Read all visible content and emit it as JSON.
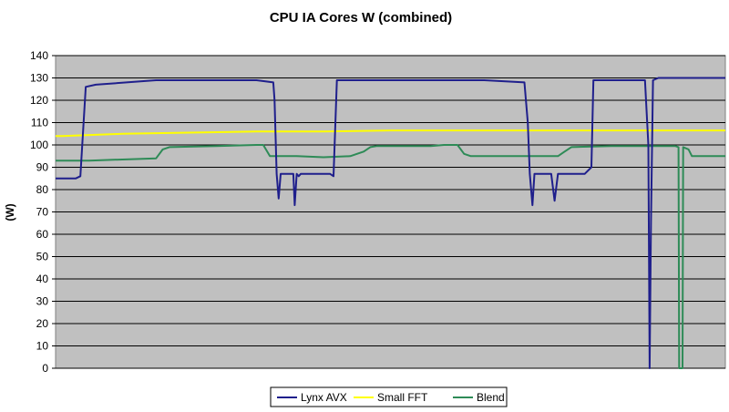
{
  "chart_data": {
    "type": "line",
    "title": "CPU IA Cores W (combined)",
    "xlabel": "",
    "ylabel": "(W)",
    "ylim": [
      0,
      140
    ],
    "ytick_step": 10,
    "xlim": [
      0,
      1000
    ],
    "grid": true,
    "legend_position": "bottom",
    "plot_background": "#c0c0c0",
    "series": [
      {
        "name": "Lynx AVX",
        "color": "#1f1f8c",
        "x": [
          0,
          30,
          37,
          45,
          60,
          150,
          300,
          325,
          327,
          330,
          333,
          336,
          355,
          357,
          360,
          363,
          366,
          400,
          410,
          415,
          420,
          425,
          490,
          580,
          600,
          640,
          700,
          705,
          708,
          712,
          715,
          720,
          740,
          745,
          750,
          755,
          760,
          790,
          800,
          803,
          806,
          810,
          880,
          885,
          887,
          889,
          892,
          900,
          1000
        ],
        "y": [
          85,
          85,
          86,
          126,
          127,
          129,
          129,
          128,
          120,
          87,
          76,
          87,
          87,
          73,
          87,
          86,
          87,
          87,
          87,
          86,
          129,
          129,
          129,
          129,
          129,
          129,
          128,
          110,
          87,
          73,
          87,
          87,
          87,
          75,
          87,
          87,
          87,
          87,
          90,
          129,
          129,
          129,
          129,
          100,
          0,
          66,
          129,
          130,
          130
        ]
      },
      {
        "name": "Small FFT",
        "color": "#ffff00",
        "x": [
          0,
          10,
          100,
          200,
          300,
          400,
          500,
          600,
          700,
          800,
          900,
          1000
        ],
        "y": [
          104,
          104,
          105,
          105.5,
          106,
          106,
          106.5,
          106.5,
          106.5,
          106.5,
          106.5,
          106.5
        ]
      },
      {
        "name": "Blend",
        "color": "#2e8b57",
        "x": [
          0,
          50,
          150,
          160,
          170,
          240,
          300,
          310,
          320,
          360,
          400,
          440,
          460,
          470,
          480,
          560,
          580,
          600,
          610,
          620,
          700,
          750,
          760,
          770,
          830,
          880,
          885,
          925,
          930,
          931,
          936,
          937,
          945,
          950,
          955,
          1000
        ],
        "y": [
          93,
          93,
          94,
          98,
          99,
          99.5,
          100,
          100,
          95,
          95,
          94.5,
          95,
          97,
          99,
          99.5,
          99.5,
          100,
          100,
          96,
          95,
          95,
          95,
          97,
          99,
          99.5,
          99.5,
          99.5,
          99.5,
          99,
          0,
          0,
          99,
          98,
          95,
          95,
          95
        ]
      }
    ]
  }
}
